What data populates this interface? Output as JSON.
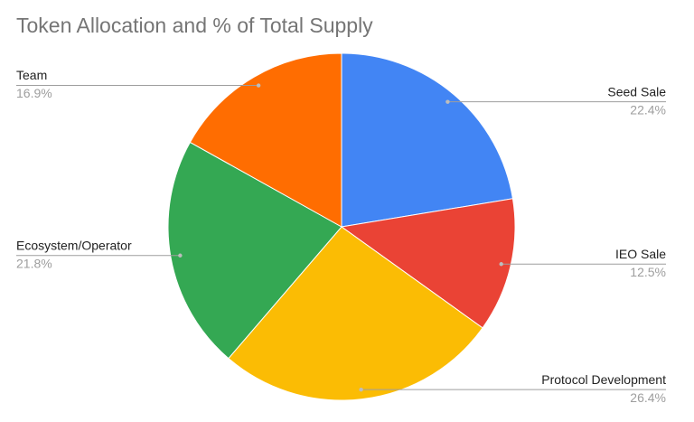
{
  "chart_data": {
    "type": "pie",
    "title": "Token Allocation and % of Total Supply",
    "categories": [
      "Seed Sale",
      "IEO Sale",
      "Protocol Development",
      "Ecosystem/Operator",
      "Team"
    ],
    "values": [
      22.4,
      12.5,
      26.4,
      21.8,
      16.9
    ],
    "value_labels": [
      "22.4%",
      "12.5%",
      "26.4%",
      "21.8%",
      "16.9%"
    ],
    "colors": [
      "#4285f4",
      "#ea4335",
      "#fbbc04",
      "#34a853",
      "#ff6d01"
    ]
  }
}
